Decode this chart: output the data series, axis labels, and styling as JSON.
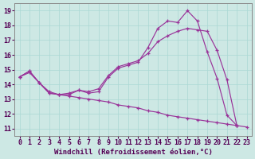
{
  "background_color": "#cde8e4",
  "line_color": "#993399",
  "grid_color": "#aad8d4",
  "xlabel": "Windchill (Refroidissement éolien,°C)",
  "xlabel_fontsize": 6.5,
  "tick_fontsize": 6.0,
  "xlim": [
    -0.5,
    23.5
  ],
  "ylim": [
    10.5,
    19.5
  ],
  "yticks": [
    11,
    12,
    13,
    14,
    15,
    16,
    17,
    18,
    19
  ],
  "xticks": [
    0,
    1,
    2,
    3,
    4,
    5,
    6,
    7,
    8,
    9,
    10,
    11,
    12,
    13,
    14,
    15,
    16,
    17,
    18,
    19,
    20,
    21,
    22,
    23
  ],
  "line1_x": [
    0,
    1,
    2,
    3,
    4,
    5,
    6,
    7,
    8,
    9,
    10,
    11,
    12,
    13,
    14,
    15,
    16,
    17,
    18,
    19,
    20,
    21,
    22
  ],
  "line1_y": [
    14.5,
    14.9,
    14.1,
    13.4,
    13.3,
    13.3,
    13.6,
    13.4,
    13.5,
    14.5,
    15.1,
    15.3,
    15.5,
    16.5,
    17.8,
    18.3,
    18.2,
    19.0,
    18.3,
    16.2,
    14.4,
    11.9,
    11.2
  ],
  "line2_x": [
    0,
    1,
    2,
    3,
    4,
    5,
    6,
    7,
    8,
    9,
    10,
    11,
    12,
    13,
    14,
    15,
    16,
    17,
    18,
    19,
    20,
    21,
    22
  ],
  "line2_y": [
    14.5,
    14.9,
    14.1,
    13.5,
    13.3,
    13.4,
    13.6,
    13.5,
    13.7,
    14.6,
    15.2,
    15.4,
    15.6,
    16.1,
    16.9,
    17.3,
    17.6,
    17.8,
    17.7,
    17.6,
    16.3,
    14.3,
    11.2
  ],
  "line3_x": [
    0,
    1,
    2,
    3,
    4,
    5,
    6,
    7,
    8,
    9,
    10,
    11,
    12,
    13,
    14,
    15,
    16,
    17,
    18,
    19,
    20,
    21,
    22,
    23
  ],
  "line3_y": [
    14.5,
    14.8,
    14.1,
    13.4,
    13.3,
    13.2,
    13.1,
    13.0,
    12.9,
    12.8,
    12.6,
    12.5,
    12.4,
    12.2,
    12.1,
    11.9,
    11.8,
    11.7,
    11.6,
    11.5,
    11.4,
    11.3,
    11.2,
    11.1
  ]
}
